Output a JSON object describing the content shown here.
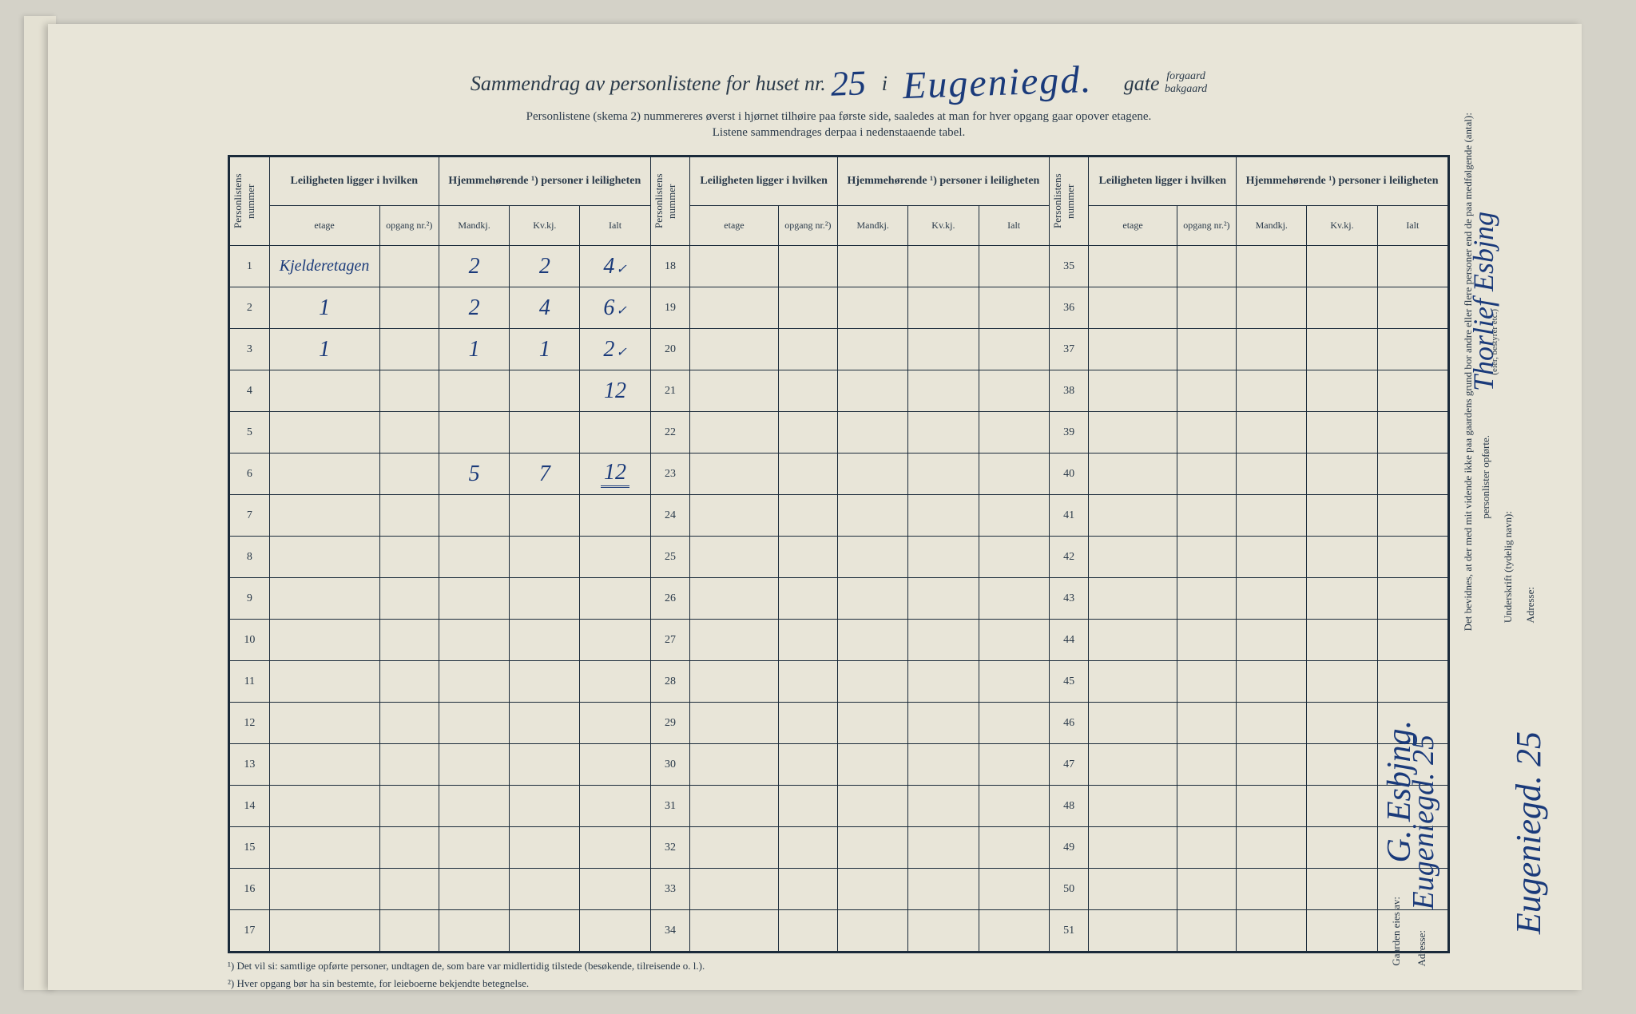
{
  "title": {
    "prefix": "Sammendrag av personlistene for huset nr.",
    "house_number": "25",
    "separator": "i",
    "street_name": "Eugeniegd.",
    "gate": "gate",
    "gate_option_1": "forgaard",
    "gate_option_2": "bakgaard"
  },
  "subtitle_line1": "Personlistene (skema 2) nummereres øverst i hjørnet tilhøire paa første side, saaledes at man for hver opgang gaar opover etagene.",
  "subtitle_line2": "Listene sammendrages derpaa i nedenstaaende tabel.",
  "headers": {
    "personlistens_nummer": "Personlistens nummer",
    "leiligheten": "Leiligheten ligger i hvilken",
    "hjemmehorende": "Hjemmehørende ¹) personer i leiligheten",
    "etage": "etage",
    "opgang": "opgang nr.²)",
    "mandkj": "Mandkj.",
    "kvkj": "Kv.kj.",
    "ialt": "Ialt"
  },
  "rows": [
    {
      "n": "1",
      "etage": "Kjelderetagen",
      "opg": "",
      "m": "2",
      "k": "2",
      "i": "4",
      "tick": true
    },
    {
      "n": "2",
      "etage": "1",
      "opg": "",
      "m": "2",
      "k": "4",
      "i": "6",
      "tick": true
    },
    {
      "n": "3",
      "etage": "1",
      "opg": "",
      "m": "1",
      "k": "1",
      "i": "2",
      "tick": true
    },
    {
      "n": "4",
      "etage": "",
      "opg": "",
      "m": "",
      "k": "",
      "i": "12",
      "tick": false
    },
    {
      "n": "5",
      "etage": "",
      "opg": "",
      "m": "",
      "k": "",
      "i": "",
      "tick": false
    },
    {
      "n": "6",
      "etage": "",
      "opg": "",
      "m": "5",
      "k": "7",
      "i": "12",
      "tick": false,
      "dbl": true
    },
    {
      "n": "7",
      "etage": "",
      "opg": "",
      "m": "",
      "k": "",
      "i": "",
      "tick": false
    },
    {
      "n": "8",
      "etage": "",
      "opg": "",
      "m": "",
      "k": "",
      "i": "",
      "tick": false
    },
    {
      "n": "9",
      "etage": "",
      "opg": "",
      "m": "",
      "k": "",
      "i": "",
      "tick": false
    },
    {
      "n": "10",
      "etage": "",
      "opg": "",
      "m": "",
      "k": "",
      "i": "",
      "tick": false
    },
    {
      "n": "11",
      "etage": "",
      "opg": "",
      "m": "",
      "k": "",
      "i": "",
      "tick": false
    },
    {
      "n": "12",
      "etage": "",
      "opg": "",
      "m": "",
      "k": "",
      "i": "",
      "tick": false
    },
    {
      "n": "13",
      "etage": "",
      "opg": "",
      "m": "",
      "k": "",
      "i": "",
      "tick": false
    },
    {
      "n": "14",
      "etage": "",
      "opg": "",
      "m": "",
      "k": "",
      "i": "",
      "tick": false
    },
    {
      "n": "15",
      "etage": "",
      "opg": "",
      "m": "",
      "k": "",
      "i": "",
      "tick": false
    },
    {
      "n": "16",
      "etage": "",
      "opg": "",
      "m": "",
      "k": "",
      "i": "",
      "tick": false
    },
    {
      "n": "17",
      "etage": "",
      "opg": "",
      "m": "",
      "k": "",
      "i": "",
      "tick": false
    }
  ],
  "col2_start": 18,
  "col3_start": 35,
  "footnote1": "¹)  Det vil si: samtlige opførte personer, undtagen de, som bare var midlertidig tilstede (besøkende, tilreisende o. l.).",
  "footnote2": "²)  Hver opgang bør ha sin bestemte, for leieboerne bekjendte betegnelse.",
  "margin": {
    "gaarden_eies": "Gaarden eies av:",
    "owner_name": "G. Esbjng.",
    "owner_addr_label": "Adresse:",
    "owner_addr": "Eugeniegd. 25",
    "bevidnes": "Det bevidnes, at der med mit vidende ikke paa gaardens grund bor andre eller flere personer end de paa medfølgende (antal):",
    "personlister": "personlister opførte.",
    "underskrift_label": "Underskrift (tydelig navn):",
    "signature": "Thorlief Esbjng",
    "eier_note": "(eier, bestyrer etc.)",
    "sig_addr_label": "Adresse:",
    "sig_addr": "Eugeniegd. 25"
  },
  "colors": {
    "paper": "#e8e5d8",
    "ink_print": "#2a3a4a",
    "ink_hand": "#1a3a7a",
    "border": "#1a2a3a"
  },
  "column_widths": {
    "personlistens": 36,
    "etage": 90,
    "opgang": 54,
    "mandkj": 64,
    "kvkj": 64,
    "ialt": 64
  }
}
